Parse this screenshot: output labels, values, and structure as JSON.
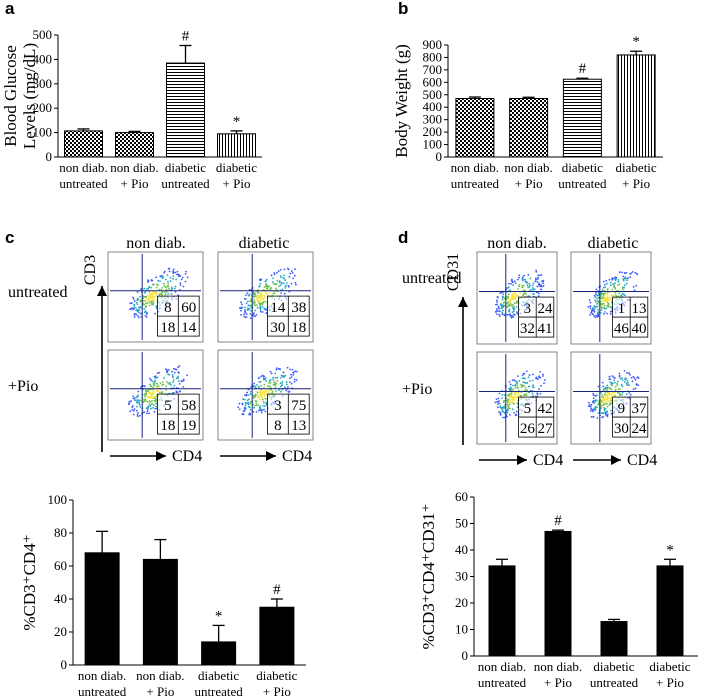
{
  "chart_data": [
    {
      "panel": "a",
      "type": "bar",
      "ylabel_line1": "Blood Glucose",
      "ylabel_line2": "Levels (mg/dL)",
      "ylim": [
        0,
        500
      ],
      "yticks": [
        "0",
        "100",
        "200",
        "300",
        "400",
        "500"
      ],
      "categories": [
        {
          "line1": "non diab.",
          "line2": "untreated"
        },
        {
          "line1": "non diab.",
          "line2": "+ Pio"
        },
        {
          "line1": "diabetic",
          "line2": "untreated"
        },
        {
          "line1": "diabetic",
          "line2": "+ Pio"
        }
      ],
      "values": [
        107,
        100,
        385,
        95
      ],
      "errors": [
        8,
        5,
        72,
        12
      ],
      "annotations": [
        "",
        "",
        "#",
        "*"
      ],
      "patterns": [
        "checker",
        "checker",
        "hstripe",
        "vstripe"
      ]
    },
    {
      "panel": "b",
      "type": "bar",
      "ylabel": "Body Weight (g)",
      "ylim": [
        0,
        900
      ],
      "yticks": [
        "0",
        "100",
        "200",
        "300",
        "400",
        "500",
        "600",
        "700",
        "800",
        "900"
      ],
      "categories": [
        {
          "line1": "non diab.",
          "line2": "untreated"
        },
        {
          "line1": "non diab.",
          "line2": "+ Pio"
        },
        {
          "line1": "diabetic",
          "line2": "untreated"
        },
        {
          "line1": "diabetic",
          "line2": "+ Pio"
        }
      ],
      "values": [
        470,
        470,
        625,
        820
      ],
      "errors": [
        12,
        10,
        8,
        30
      ],
      "annotations": [
        "",
        "",
        "#",
        "*"
      ],
      "patterns": [
        "checker",
        "checker",
        "hstripe",
        "vstripe"
      ]
    },
    {
      "panel": "c-bar",
      "type": "bar",
      "ylabel": "%CD3⁺CD4⁺",
      "ylim": [
        0,
        100
      ],
      "yticks": [
        "0",
        "20",
        "40",
        "60",
        "80",
        "100"
      ],
      "categories": [
        {
          "line1": "non diab.",
          "line2": "untreated"
        },
        {
          "line1": "non diab.",
          "line2": "+ Pio"
        },
        {
          "line1": "diabetic",
          "line2": "untreated"
        },
        {
          "line1": "diabetic",
          "line2": "+ Pio"
        }
      ],
      "values": [
        68,
        64,
        14,
        35
      ],
      "errors": [
        13,
        12,
        10,
        5
      ],
      "annotations": [
        "",
        "",
        "*",
        "#"
      ]
    },
    {
      "panel": "d-bar",
      "type": "bar",
      "ylabel": "%CD3⁺CD4⁺CD31⁺",
      "ylim": [
        0,
        60
      ],
      "yticks": [
        "0",
        "10",
        "20",
        "30",
        "40",
        "50",
        "60"
      ],
      "categories": [
        {
          "line1": "non diab.",
          "line2": "untreated"
        },
        {
          "line1": "non diab.",
          "line2": "+ Pio"
        },
        {
          "line1": "diabetic",
          "line2": "untreated"
        },
        {
          "line1": "diabetic",
          "line2": "+ Pio"
        }
      ],
      "values": [
        34,
        47,
        13,
        34
      ],
      "errors": [
        2.5,
        0.5,
        0.8,
        2.5
      ],
      "annotations": [
        "",
        "#",
        "",
        "*"
      ]
    }
  ],
  "flow": {
    "c": {
      "letter": "c",
      "col_labels": [
        "non diab.",
        "diabetic"
      ],
      "row_labels": [
        "untreated",
        "+Pio"
      ],
      "y_axis_label": "CD3",
      "x_axis_label": "CD4",
      "quadrants": [
        [
          "8",
          "60",
          "18",
          "14"
        ],
        [
          "14",
          "38",
          "30",
          "18"
        ],
        [
          "5",
          "58",
          "18",
          "19"
        ],
        [
          "3",
          "75",
          "8",
          "13"
        ]
      ]
    },
    "d": {
      "letter": "d",
      "col_labels": [
        "non diab.",
        "diabetic"
      ],
      "row_labels": [
        "untreated",
        "+Pio"
      ],
      "y_axis_label": "CD31",
      "x_axis_label": "CD4",
      "quadrants": [
        [
          "3",
          "24",
          "32",
          "41"
        ],
        [
          "1",
          "13",
          "46",
          "40"
        ],
        [
          "5",
          "42",
          "26",
          "27"
        ],
        [
          "9",
          "37",
          "30",
          "24"
        ]
      ]
    }
  },
  "panel_letters": {
    "a": "a",
    "b": "b"
  },
  "colors": {
    "ink": "#000000",
    "axis_blue": "#1a237e",
    "dot_blue": "#3d5afe",
    "dot_green": "#76c043",
    "dot_yellow": "#ffe34d"
  }
}
